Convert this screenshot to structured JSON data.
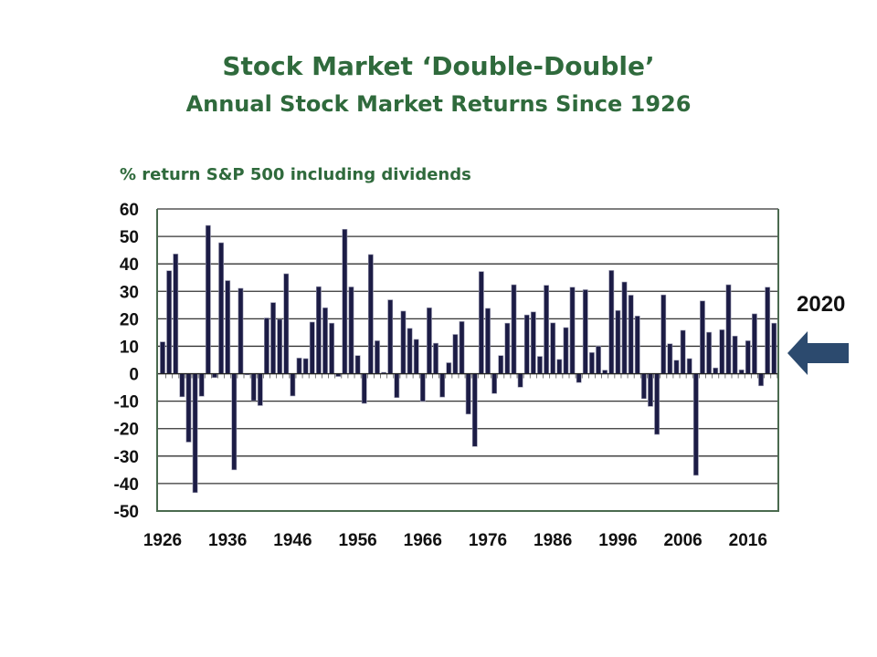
{
  "chart_data": {
    "type": "bar",
    "title": "Stock Market ‘Double-Double’",
    "subtitle": "Annual Stock Market Returns Since 1926",
    "ylabel": "% return S&P 500 including dividends",
    "xlabel": "",
    "ylim": [
      -50,
      60
    ],
    "yticks": [
      "60",
      "50",
      "40",
      "30",
      "20",
      "10",
      "0",
      "-10",
      "-20",
      "-30",
      "-40",
      "-50"
    ],
    "xticks": [
      "1926",
      "1936",
      "1946",
      "1956",
      "1966",
      "1976",
      "1986",
      "1996",
      "2006",
      "2016"
    ],
    "grid": true,
    "start_year": 1926,
    "values": [
      11.6,
      37.5,
      43.6,
      -8.4,
      -24.9,
      -43.3,
      -8.2,
      54.0,
      -1.4,
      47.7,
      33.9,
      -35.0,
      31.1,
      -0.4,
      -9.8,
      -11.6,
      20.3,
      25.9,
      19.8,
      36.4,
      -8.1,
      5.7,
      5.5,
      18.8,
      31.7,
      24.0,
      18.4,
      -1.0,
      52.6,
      31.6,
      6.6,
      -10.8,
      43.4,
      12.0,
      0.5,
      26.9,
      -8.7,
      22.8,
      16.5,
      12.5,
      -10.1,
      24.0,
      11.1,
      -8.5,
      4.0,
      14.3,
      19.0,
      -14.7,
      -26.5,
      37.2,
      23.8,
      -7.2,
      6.6,
      18.4,
      32.4,
      -4.9,
      21.4,
      22.5,
      6.3,
      32.2,
      18.5,
      5.2,
      16.8,
      31.5,
      -3.2,
      30.6,
      7.7,
      10.0,
      1.3,
      37.6,
      23.0,
      33.4,
      28.6,
      21.0,
      -9.1,
      -11.9,
      -22.1,
      28.7,
      10.9,
      4.9,
      15.8,
      5.5,
      -37.0,
      26.5,
      15.1,
      2.1,
      16.0,
      32.4,
      13.7,
      1.4,
      12.0,
      21.8,
      -4.4,
      31.5,
      18.4
    ],
    "annotation": "2020",
    "bar_color": "#1c1c45",
    "title_color": "#2f6a3c",
    "arrow_color": "#2c4a6e"
  }
}
